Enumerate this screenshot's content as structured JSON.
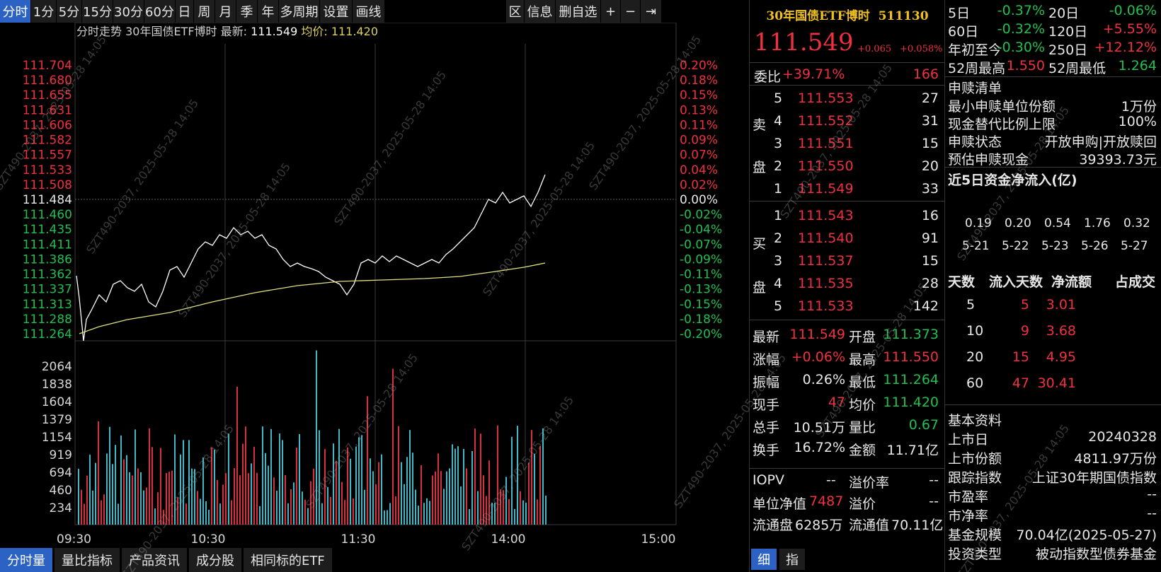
{
  "toolbar": {
    "tabs": [
      "分时",
      "1分",
      "5分",
      "15分",
      "30分",
      "60分",
      "日",
      "周",
      "月",
      "季",
      "年",
      "多周期",
      "设置",
      "画线"
    ],
    "right": [
      "区",
      "信息",
      "删自选",
      "+",
      "−",
      "⇥"
    ]
  },
  "chart": {
    "header_label": "分时走势",
    "fund_name": "30年国债ETF博时",
    "latest_label": "最新:",
    "latest_value": "111.549",
    "avg_label": "均价:",
    "avg_value": "111.420",
    "price_ticks": [
      "111.704",
      "111.680",
      "111.655",
      "111.631",
      "111.606",
      "111.582",
      "111.557",
      "111.533",
      "111.508",
      "111.484",
      "111.460",
      "111.435",
      "111.411",
      "111.386",
      "111.362",
      "111.337",
      "111.313",
      "111.288",
      "111.264"
    ],
    "pct_ticks": [
      "0.20%",
      "0.18%",
      "0.15%",
      "0.13%",
      "0.11%",
      "0.09%",
      "0.07%",
      "0.04%",
      "0.02%",
      "0.00%",
      "-0.02%",
      "-0.04%",
      "-0.07%",
      "-0.09%",
      "-0.11%",
      "-0.13%",
      "-0.15%",
      "-0.18%",
      "-0.20%"
    ],
    "vol_ticks": [
      "2064",
      "1838",
      "1604",
      "1379",
      "1154",
      "919",
      "694",
      "460",
      "234"
    ],
    "time_ticks": [
      "09:30",
      "10:30",
      "11:30",
      "14:00",
      "15:00"
    ],
    "colors": {
      "up": "#f03040",
      "down": "#20c050",
      "neutral": "#e8e8e8",
      "price_line": "#ffffff",
      "avg_line": "#e0e080",
      "vol_up": "#d83040",
      "vol_down": "#40b8c8"
    }
  },
  "quote": {
    "title": "30年国债ETF博时",
    "code": "511130",
    "price": "111.549",
    "change": "+0.065",
    "change_pct": "+0.058%",
    "weibi_label": "委比",
    "weibi_value": "+39.71%",
    "weicha_value": "166",
    "sell_label_1": "卖",
    "sell_label_2": "盘",
    "buy_label_1": "买",
    "buy_label_2": "盘",
    "sells": [
      {
        "level": "5",
        "price": "111.553",
        "vol": "27"
      },
      {
        "level": "4",
        "price": "111.552",
        "vol": "31"
      },
      {
        "level": "3",
        "price": "111.551",
        "vol": "15"
      },
      {
        "level": "2",
        "price": "111.550",
        "vol": "20"
      },
      {
        "level": "1",
        "price": "111.549",
        "vol": "33"
      }
    ],
    "buys": [
      {
        "level": "1",
        "price": "111.543",
        "vol": "16"
      },
      {
        "level": "2",
        "price": "111.540",
        "vol": "91"
      },
      {
        "level": "3",
        "price": "111.537",
        "vol": "15"
      },
      {
        "level": "4",
        "price": "111.535",
        "vol": "28"
      },
      {
        "level": "5",
        "price": "111.533",
        "vol": "142"
      }
    ],
    "stats": [
      {
        "l1": "最新",
        "v1": "111.549",
        "c1": "red",
        "l2": "开盘",
        "v2": "111.373",
        "c2": "green"
      },
      {
        "l1": "涨幅",
        "v1": "+0.06%",
        "c1": "red",
        "l2": "最高",
        "v2": "111.550",
        "c2": "red"
      },
      {
        "l1": "振幅",
        "v1": "0.26%",
        "c1": "white",
        "l2": "最低",
        "v2": "111.264",
        "c2": "green"
      },
      {
        "l1": "现手",
        "v1": "47",
        "c1": "red",
        "l2": "均价",
        "v2": "111.420",
        "c2": "green"
      },
      {
        "l1": "总手",
        "v1": "10.51万",
        "c1": "white",
        "l2": "量比",
        "v2": "0.67",
        "c2": "green"
      },
      {
        "l1": "换手",
        "v1": "16.72%",
        "c1": "white",
        "l2": "金额",
        "v2": "11.71亿",
        "c2": "white"
      }
    ],
    "iopv_label": "IOPV",
    "iopv_value": "--",
    "premium_label": "溢价率",
    "premium_value": "--",
    "nav_label": "单位净值",
    "nav_value": "7487",
    "yijia_label": "溢价",
    "yijia_value": "--",
    "float_label": "流通盘",
    "float_value": "6285万",
    "float_mv_label": "流通值",
    "float_mv_value": "70.11亿",
    "tab_xi": "细",
    "tab_zhi": "指"
  },
  "perf": {
    "rows": [
      {
        "l1": "5日",
        "v1": "-0.37%",
        "c1": "green",
        "l2": "20日",
        "v2": "-0.06%",
        "c2": "green"
      },
      {
        "l1": "60日",
        "v1": "-0.32%",
        "c1": "green",
        "l2": "120日",
        "v2": "+5.55%",
        "c2": "red"
      },
      {
        "l1": "年初至今",
        "v1": "-0.30%",
        "c1": "green",
        "l2": "250日",
        "v2": "+12.12%",
        "c2": "red"
      },
      {
        "l1": "52周最高",
        "v1": "1.550",
        "c1": "red",
        "l2": "52周最低",
        "v2": "1.264",
        "c2": "green"
      }
    ]
  },
  "subscription": {
    "title": "申赎清单",
    "rows": [
      {
        "label": "最小申赎单位份额",
        "value": "1万份"
      },
      {
        "label": "现金替代比例上限",
        "value": "100%"
      },
      {
        "label": "申赎状态",
        "value": "开放申购|开放赎回"
      },
      {
        "label": "预估申赎现金",
        "value": "39393.73元"
      }
    ]
  },
  "flow": {
    "title": "近5日资金净流入(亿)",
    "bars": [
      {
        "date": "5-21",
        "value": "0.19"
      },
      {
        "date": "5-22",
        "value": "0.20"
      },
      {
        "date": "5-23",
        "value": "0.54"
      },
      {
        "date": "5-26",
        "value": "1.76"
      },
      {
        "date": "5-27",
        "value": "0.32"
      }
    ],
    "table_headers": [
      "天数",
      "流入天数",
      "净流额",
      "占成交"
    ],
    "table_rows": [
      {
        "days": "5",
        "inflow_days": "5",
        "net": "3.01"
      },
      {
        "days": "10",
        "inflow_days": "9",
        "net": "3.68"
      },
      {
        "days": "20",
        "inflow_days": "15",
        "net": "4.95"
      },
      {
        "days": "60",
        "inflow_days": "47",
        "net": "30.41"
      }
    ]
  },
  "basic": {
    "title": "基本资料",
    "rows": [
      {
        "label": "上市日",
        "value": "20240328"
      },
      {
        "label": "上市份额",
        "value": "4811.97万份"
      },
      {
        "label": "跟踪指数",
        "value": "上证30年期国债指数"
      },
      {
        "label": "市盈率",
        "value": "--"
      },
      {
        "label": "市净率",
        "value": "--"
      },
      {
        "label": "基金规模",
        "value": "70.04亿(2025-05-27)"
      },
      {
        "label": "投资类型",
        "value": "被动指数型债券基金"
      }
    ]
  },
  "bottom_tabs": [
    "分时量",
    "量比指标",
    "产品资讯",
    "成分股",
    "相同标的ETF"
  ],
  "watermark": "SZT490-2037, 2025-05-28 14:05"
}
